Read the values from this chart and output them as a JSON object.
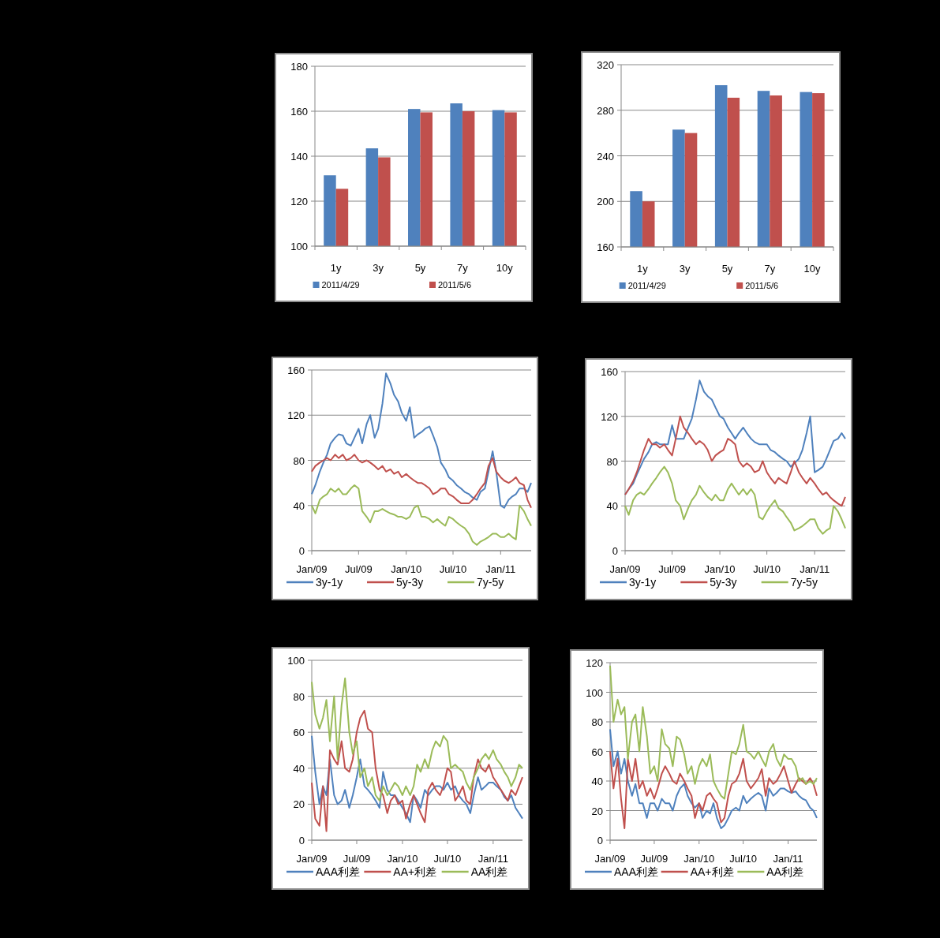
{
  "chart_data": [
    {
      "type": "bar",
      "categories": [
        "1y",
        "3y",
        "5y",
        "7y",
        "10y"
      ],
      "ylim": [
        100,
        180
      ],
      "yticks": [
        100,
        120,
        140,
        160,
        180
      ],
      "grid": "y",
      "legend": "bottom",
      "series": [
        {
          "name": "2011/4/29",
          "color": "#4f81bd",
          "values": [
            131.5,
            143.5,
            161,
            163.5,
            160.5
          ]
        },
        {
          "name": "2011/5/6",
          "color": "#c0504d",
          "values": [
            125.5,
            139.5,
            159.5,
            160,
            159.5
          ]
        }
      ]
    },
    {
      "type": "bar",
      "categories": [
        "1y",
        "3y",
        "5y",
        "7y",
        "10y"
      ],
      "ylim": [
        160,
        320
      ],
      "yticks": [
        160,
        200,
        240,
        280,
        320
      ],
      "grid": "y",
      "legend": "bottom",
      "series": [
        {
          "name": "2011/4/29",
          "color": "#4f81bd",
          "values": [
            209,
            263,
            302,
            297,
            296
          ]
        },
        {
          "name": "2011/5/6",
          "color": "#c0504d",
          "values": [
            200,
            260,
            291,
            293,
            295
          ]
        }
      ]
    },
    {
      "type": "line",
      "xlim": [
        "2009-01-01",
        "2011-04-29"
      ],
      "xticks": [
        {
          "value": "2009-01-01",
          "label": "Jan/09"
        },
        {
          "value": "2009-07-01",
          "label": "Jul/09"
        },
        {
          "value": "2010-01-01",
          "label": "Jan/10"
        },
        {
          "value": "2010-07-01",
          "label": "Jul/10"
        },
        {
          "value": "2011-01-01",
          "label": "Jan/11"
        }
      ],
      "ylim": [
        0,
        160
      ],
      "yticks": [
        0,
        40,
        80,
        120,
        160
      ],
      "grid": "y",
      "legend": "bottom",
      "x": [
        "2009-01-01",
        "2009-01-15",
        "2009-02-01",
        "2009-02-15",
        "2009-03-01",
        "2009-03-15",
        "2009-04-01",
        "2009-04-15",
        "2009-05-01",
        "2009-05-15",
        "2009-06-01",
        "2009-06-15",
        "2009-07-01",
        "2009-07-15",
        "2009-08-01",
        "2009-08-15",
        "2009-09-01",
        "2009-09-15",
        "2009-10-01",
        "2009-10-15",
        "2009-11-01",
        "2009-11-15",
        "2009-12-01",
        "2009-12-15",
        "2010-01-01",
        "2010-01-15",
        "2010-02-01",
        "2010-02-15",
        "2010-03-01",
        "2010-03-15",
        "2010-04-01",
        "2010-04-15",
        "2010-05-01",
        "2010-05-15",
        "2010-06-01",
        "2010-06-15",
        "2010-07-01",
        "2010-07-15",
        "2010-08-01",
        "2010-08-15",
        "2010-09-01",
        "2010-09-15",
        "2010-10-01",
        "2010-10-15",
        "2010-11-01",
        "2010-11-15",
        "2010-12-01",
        "2010-12-15",
        "2011-01-01",
        "2011-01-15",
        "2011-02-01",
        "2011-02-15",
        "2011-03-01",
        "2011-03-15",
        "2011-04-01",
        "2011-04-15",
        "2011-04-29"
      ],
      "series": [
        {
          "name": "3y-1y",
          "color": "#4f81bd",
          "values": [
            50,
            58,
            70,
            78,
            85,
            95,
            100,
            103,
            102,
            95,
            93,
            100,
            108,
            95,
            112,
            120,
            100,
            108,
            130,
            157,
            148,
            138,
            132,
            122,
            115,
            127,
            100,
            103,
            105,
            108,
            110,
            102,
            92,
            78,
            72,
            65,
            62,
            58,
            55,
            52,
            50,
            47,
            45,
            52,
            55,
            70,
            88,
            70,
            40,
            38,
            45,
            48,
            50,
            55,
            55,
            52,
            60
          ]
        },
        {
          "name": "5y-3y",
          "color": "#c0504d",
          "values": [
            70,
            75,
            78,
            80,
            82,
            80,
            85,
            82,
            85,
            80,
            82,
            85,
            80,
            78,
            80,
            78,
            75,
            72,
            75,
            70,
            72,
            68,
            70,
            65,
            68,
            65,
            62,
            60,
            60,
            58,
            55,
            50,
            52,
            55,
            55,
            50,
            48,
            45,
            42,
            42,
            42,
            45,
            50,
            55,
            60,
            75,
            82,
            70,
            65,
            62,
            60,
            62,
            65,
            60,
            58,
            45,
            38
          ]
        },
        {
          "name": "7y-5y",
          "color": "#9bbb59",
          "values": [
            40,
            33,
            45,
            48,
            50,
            55,
            52,
            55,
            50,
            50,
            55,
            58,
            55,
            35,
            30,
            25,
            35,
            35,
            37,
            35,
            33,
            32,
            30,
            30,
            28,
            30,
            38,
            40,
            30,
            30,
            28,
            25,
            28,
            25,
            22,
            30,
            28,
            25,
            22,
            20,
            15,
            8,
            5,
            8,
            10,
            12,
            15,
            15,
            12,
            12,
            15,
            12,
            10,
            40,
            35,
            28,
            22
          ]
        }
      ]
    },
    {
      "type": "line",
      "xlim": [
        "2009-01-01",
        "2011-04-29"
      ],
      "xticks": [
        {
          "value": "2009-01-01",
          "label": "Jan/09"
        },
        {
          "value": "2009-07-01",
          "label": "Jul/09"
        },
        {
          "value": "2010-01-01",
          "label": "Jan/10"
        },
        {
          "value": "2010-07-01",
          "label": "Jul/10"
        },
        {
          "value": "2011-01-01",
          "label": "Jan/11"
        }
      ],
      "ylim": [
        0,
        160
      ],
      "yticks": [
        0,
        40,
        80,
        120,
        160
      ],
      "grid": "y",
      "legend": "bottom",
      "x": [
        "2009-01-01",
        "2009-01-15",
        "2009-02-01",
        "2009-02-15",
        "2009-03-01",
        "2009-03-15",
        "2009-04-01",
        "2009-04-15",
        "2009-05-01",
        "2009-05-15",
        "2009-06-01",
        "2009-06-15",
        "2009-07-01",
        "2009-07-15",
        "2009-08-01",
        "2009-08-15",
        "2009-09-01",
        "2009-09-15",
        "2009-10-01",
        "2009-10-15",
        "2009-11-01",
        "2009-11-15",
        "2009-12-01",
        "2009-12-15",
        "2010-01-01",
        "2010-01-15",
        "2010-02-01",
        "2010-02-15",
        "2010-03-01",
        "2010-03-15",
        "2010-04-01",
        "2010-04-15",
        "2010-05-01",
        "2010-05-15",
        "2010-06-01",
        "2010-06-15",
        "2010-07-01",
        "2010-07-15",
        "2010-08-01",
        "2010-08-15",
        "2010-09-01",
        "2010-09-15",
        "2010-10-01",
        "2010-10-15",
        "2010-11-01",
        "2010-11-15",
        "2010-12-01",
        "2010-12-15",
        "2011-01-01",
        "2011-01-15",
        "2011-02-01",
        "2011-02-15",
        "2011-03-01",
        "2011-03-15",
        "2011-04-01",
        "2011-04-15",
        "2011-04-29"
      ],
      "series": [
        {
          "name": "3y-1y",
          "color": "#4f81bd",
          "values": [
            50,
            55,
            60,
            68,
            75,
            82,
            88,
            95,
            97,
            95,
            95,
            95,
            112,
            100,
            100,
            100,
            110,
            118,
            135,
            152,
            142,
            138,
            135,
            128,
            120,
            118,
            110,
            105,
            100,
            105,
            110,
            105,
            100,
            97,
            95,
            95,
            95,
            90,
            88,
            85,
            82,
            80,
            75,
            78,
            82,
            90,
            105,
            120,
            70,
            72,
            75,
            82,
            90,
            98,
            100,
            105,
            100
          ]
        },
        {
          "name": "5y-3y",
          "color": "#c0504d",
          "values": [
            50,
            55,
            62,
            70,
            80,
            90,
            100,
            95,
            95,
            92,
            95,
            90,
            85,
            100,
            120,
            110,
            105,
            100,
            95,
            98,
            95,
            90,
            80,
            85,
            88,
            90,
            100,
            98,
            95,
            80,
            75,
            78,
            75,
            70,
            72,
            80,
            70,
            65,
            60,
            65,
            62,
            60,
            70,
            80,
            70,
            65,
            60,
            65,
            60,
            55,
            50,
            52,
            48,
            45,
            42,
            40,
            48
          ]
        },
        {
          "name": "7y-5y",
          "color": "#9bbb59",
          "values": [
            40,
            32,
            45,
            50,
            52,
            50,
            55,
            60,
            65,
            70,
            75,
            70,
            60,
            45,
            40,
            28,
            38,
            45,
            50,
            58,
            52,
            48,
            45,
            50,
            45,
            45,
            55,
            60,
            55,
            50,
            55,
            50,
            55,
            50,
            30,
            28,
            35,
            40,
            45,
            38,
            35,
            30,
            25,
            18,
            20,
            22,
            25,
            28,
            28,
            20,
            15,
            18,
            20,
            40,
            35,
            28,
            20
          ]
        }
      ]
    },
    {
      "type": "line",
      "xlim": [
        "2009-01-01",
        "2011-04-29"
      ],
      "xticks": [
        {
          "value": "2009-01-01",
          "label": "Jan/09"
        },
        {
          "value": "2009-07-01",
          "label": "Jul/09"
        },
        {
          "value": "2010-01-01",
          "label": "Jan/10"
        },
        {
          "value": "2010-07-01",
          "label": "Jul/10"
        },
        {
          "value": "2011-01-01",
          "label": "Jan/11"
        }
      ],
      "ylim": [
        0,
        100
      ],
      "yticks": [
        0,
        20,
        40,
        60,
        80,
        100
      ],
      "grid": "y",
      "legend": "bottom",
      "x": [
        "2009-01-01",
        "2009-01-15",
        "2009-02-01",
        "2009-02-15",
        "2009-03-01",
        "2009-03-15",
        "2009-04-01",
        "2009-04-15",
        "2009-05-01",
        "2009-05-15",
        "2009-06-01",
        "2009-06-15",
        "2009-07-01",
        "2009-07-15",
        "2009-08-01",
        "2009-08-15",
        "2009-09-01",
        "2009-09-15",
        "2009-10-01",
        "2009-10-15",
        "2009-11-01",
        "2009-11-15",
        "2009-12-01",
        "2009-12-15",
        "2010-01-01",
        "2010-01-15",
        "2010-02-01",
        "2010-02-15",
        "2010-03-01",
        "2010-03-15",
        "2010-04-01",
        "2010-04-15",
        "2010-05-01",
        "2010-05-15",
        "2010-06-01",
        "2010-06-15",
        "2010-07-01",
        "2010-07-15",
        "2010-08-01",
        "2010-08-15",
        "2010-09-01",
        "2010-09-15",
        "2010-10-01",
        "2010-10-15",
        "2010-11-01",
        "2010-11-15",
        "2010-12-01",
        "2010-12-15",
        "2011-01-01",
        "2011-01-15",
        "2011-02-01",
        "2011-02-15",
        "2011-03-01",
        "2011-03-15",
        "2011-04-01",
        "2011-04-15",
        "2011-04-29"
      ],
      "series": [
        {
          "name": "AAA利差",
          "color": "#4f81bd",
          "values": [
            58,
            38,
            20,
            30,
            25,
            45,
            25,
            20,
            22,
            28,
            18,
            25,
            35,
            45,
            30,
            28,
            25,
            22,
            18,
            38,
            28,
            25,
            25,
            22,
            18,
            15,
            10,
            25,
            22,
            18,
            28,
            25,
            28,
            30,
            30,
            28,
            32,
            28,
            30,
            25,
            22,
            20,
            15,
            25,
            35,
            28,
            30,
            32,
            32,
            30,
            28,
            24,
            22,
            25,
            18,
            15,
            12
          ]
        },
        {
          "name": "AA+利差",
          "color": "#c0504d",
          "values": [
            32,
            12,
            8,
            30,
            5,
            50,
            45,
            42,
            55,
            40,
            38,
            45,
            60,
            68,
            72,
            62,
            60,
            40,
            28,
            25,
            15,
            22,
            25,
            20,
            22,
            12,
            20,
            25,
            20,
            15,
            10,
            28,
            32,
            28,
            25,
            30,
            40,
            38,
            22,
            25,
            30,
            22,
            20,
            35,
            45,
            40,
            38,
            42,
            35,
            32,
            28,
            25,
            22,
            28,
            25,
            30,
            35
          ]
        },
        {
          "name": "AA利差",
          "color": "#9bbb59",
          "values": [
            88,
            70,
            62,
            68,
            78,
            55,
            80,
            45,
            75,
            90,
            60,
            48,
            55,
            35,
            40,
            30,
            35,
            25,
            22,
            30,
            25,
            28,
            32,
            30,
            25,
            30,
            25,
            30,
            42,
            38,
            45,
            40,
            50,
            55,
            52,
            58,
            55,
            40,
            42,
            40,
            38,
            32,
            28,
            35,
            40,
            45,
            48,
            45,
            50,
            45,
            42,
            38,
            35,
            30,
            35,
            42,
            40
          ]
        }
      ]
    },
    {
      "type": "line",
      "xlim": [
        "2009-01-01",
        "2011-04-29"
      ],
      "xticks": [
        {
          "value": "2009-01-01",
          "label": "Jan/09"
        },
        {
          "value": "2009-07-01",
          "label": "Jul/09"
        },
        {
          "value": "2010-01-01",
          "label": "Jan/10"
        },
        {
          "value": "2010-07-01",
          "label": "Jul/10"
        },
        {
          "value": "2011-01-01",
          "label": "Jan/11"
        }
      ],
      "ylim": [
        0,
        120
      ],
      "yticks": [
        0,
        20,
        40,
        60,
        80,
        100,
        120
      ],
      "grid": "y",
      "legend": "bottom",
      "x": [
        "2009-01-01",
        "2009-01-15",
        "2009-02-01",
        "2009-02-15",
        "2009-03-01",
        "2009-03-15",
        "2009-04-01",
        "2009-04-15",
        "2009-05-01",
        "2009-05-15",
        "2009-06-01",
        "2009-06-15",
        "2009-07-01",
        "2009-07-15",
        "2009-08-01",
        "2009-08-15",
        "2009-09-01",
        "2009-09-15",
        "2009-10-01",
        "2009-10-15",
        "2009-11-01",
        "2009-11-15",
        "2009-12-01",
        "2009-12-15",
        "2010-01-01",
        "2010-01-15",
        "2010-02-01",
        "2010-02-15",
        "2010-03-01",
        "2010-03-15",
        "2010-04-01",
        "2010-04-15",
        "2010-05-01",
        "2010-05-15",
        "2010-06-01",
        "2010-06-15",
        "2010-07-01",
        "2010-07-15",
        "2010-08-01",
        "2010-08-15",
        "2010-09-01",
        "2010-09-15",
        "2010-10-01",
        "2010-10-15",
        "2010-11-01",
        "2010-11-15",
        "2010-12-01",
        "2010-12-15",
        "2011-01-01",
        "2011-01-15",
        "2011-02-01",
        "2011-02-15",
        "2011-03-01",
        "2011-03-15",
        "2011-04-01",
        "2011-04-15",
        "2011-04-29"
      ],
      "series": [
        {
          "name": "AAA利差",
          "color": "#4f81bd",
          "values": [
            75,
            50,
            60,
            45,
            55,
            40,
            30,
            38,
            25,
            25,
            15,
            25,
            25,
            20,
            28,
            25,
            25,
            20,
            30,
            35,
            38,
            30,
            25,
            22,
            25,
            15,
            20,
            18,
            25,
            15,
            8,
            10,
            15,
            20,
            22,
            20,
            30,
            25,
            28,
            30,
            32,
            30,
            20,
            35,
            30,
            32,
            35,
            35,
            33,
            32,
            33,
            30,
            28,
            27,
            22,
            20,
            15
          ]
        },
        {
          "name": "AA+利差",
          "color": "#c0504d",
          "values": [
            60,
            35,
            55,
            28,
            8,
            55,
            40,
            55,
            35,
            40,
            30,
            35,
            28,
            35,
            45,
            50,
            45,
            40,
            38,
            45,
            40,
            35,
            30,
            15,
            25,
            20,
            30,
            32,
            28,
            25,
            12,
            15,
            30,
            38,
            40,
            45,
            55,
            40,
            35,
            38,
            42,
            48,
            30,
            42,
            38,
            40,
            45,
            50,
            40,
            32,
            38,
            42,
            40,
            38,
            42,
            38,
            30
          ]
        },
        {
          "name": "AA利差",
          "color": "#9bbb59",
          "values": [
            118,
            80,
            95,
            85,
            90,
            55,
            80,
            85,
            60,
            90,
            70,
            45,
            50,
            40,
            75,
            65,
            62,
            50,
            70,
            68,
            58,
            45,
            50,
            38,
            50,
            55,
            50,
            58,
            40,
            35,
            30,
            28,
            45,
            60,
            58,
            65,
            78,
            60,
            58,
            55,
            60,
            55,
            50,
            60,
            65,
            55,
            50,
            58,
            55,
            55,
            50,
            40,
            42,
            38,
            40,
            38,
            42
          ]
        }
      ]
    }
  ]
}
